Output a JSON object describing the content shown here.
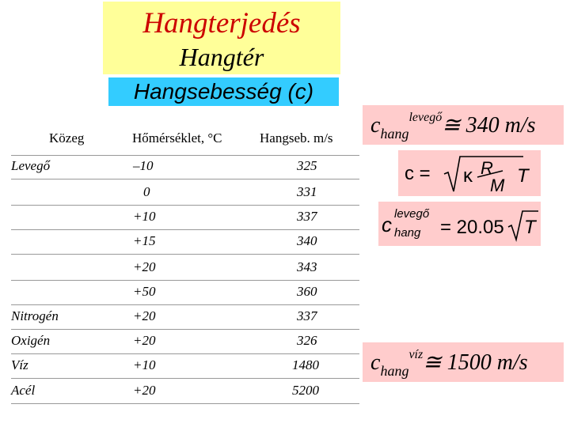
{
  "title": "Hangterjedés",
  "subtitle": "Hangtér",
  "section_title": "Hangsebesség (c)",
  "table": {
    "headers": {
      "medium": "Közeg",
      "temperature": "Hőmérséklet, °C",
      "speed": "Hangseb. m/s"
    },
    "rows": [
      {
        "medium": "Levegő",
        "temperature": "–10",
        "speed": "325"
      },
      {
        "medium": "",
        "temperature": "0",
        "speed": "331"
      },
      {
        "medium": "",
        "temperature": "+10",
        "speed": "337"
      },
      {
        "medium": "",
        "temperature": "+15",
        "speed": "340"
      },
      {
        "medium": "",
        "temperature": "+20",
        "speed": "343"
      },
      {
        "medium": "",
        "temperature": "+50",
        "speed": "360"
      },
      {
        "medium": "Nitrogén",
        "temperature": "+20",
        "speed": "337"
      },
      {
        "medium": "Oxigén",
        "temperature": "+20",
        "speed": "326"
      },
      {
        "medium": "Víz",
        "temperature": "+10",
        "speed": "1480"
      },
      {
        "medium": "Acél",
        "temperature": "+20",
        "speed": "5200"
      }
    ]
  },
  "air_speed": {
    "symbol": "c",
    "subscript": "hang",
    "superscript": "levegő",
    "approx": "≅",
    "value": "340 m/s"
  },
  "formula_general": {
    "lhs": "c =",
    "kappa": "κ",
    "r": "R",
    "m": "M",
    "t": "T"
  },
  "formula_air": {
    "c": "c",
    "sup": "levegő",
    "sub": "hang",
    "rhs": "= 20.05",
    "t": "T"
  },
  "water_speed": {
    "symbol": "c",
    "subscript": "hang",
    "superscript": "víz",
    "approx": "≅",
    "value": "1500 m/s"
  },
  "colors": {
    "title_red": "#cc0000",
    "title_bg": "#ffff99",
    "section_bg": "#33ccff",
    "highlight_pink": "#ffcccc"
  }
}
